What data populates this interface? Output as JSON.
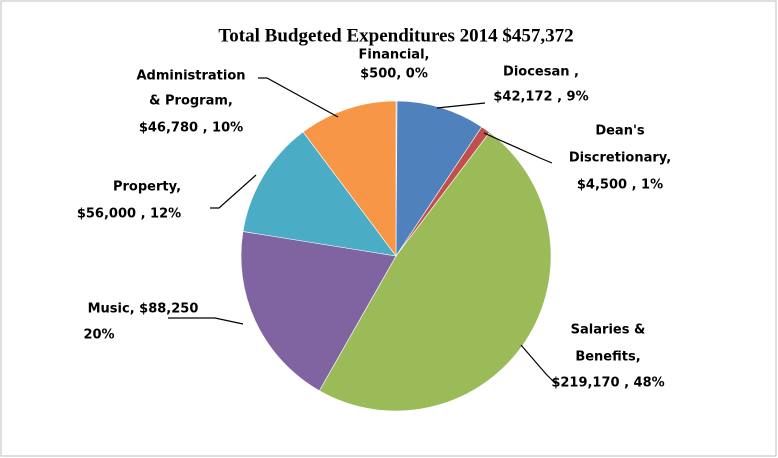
{
  "chart_data": {
    "type": "pie",
    "title": "Total Budgeted Expenditures 2014 $457,372",
    "values": [
      500,
      42172,
      4500,
      219170,
      88250,
      56000,
      46780
    ],
    "value_labels": [
      [
        "Financial,",
        "$500, 0%"
      ],
      [
        "Diocesan ,",
        "$42,172 , 9%"
      ],
      [
        "Dean's",
        "Discretionary,",
        "$4,500 , 1%"
      ],
      [
        "Salaries &",
        "Benefits,",
        "$219,170 , 48%"
      ],
      [
        "Music,  $88,250",
        "20%"
      ],
      [
        "Property,",
        "$56,000 , 12%"
      ],
      [
        "Administration",
        "& Program,",
        "$46,780 , 10%"
      ]
    ],
    "colors": [
      "#385d8a",
      "#4f81bd",
      "#c0504d",
      "#9bbb59",
      "#8064a2",
      "#4bacc6",
      "#f79646"
    ],
    "start_angle": 0,
    "direction": "clockwise"
  }
}
